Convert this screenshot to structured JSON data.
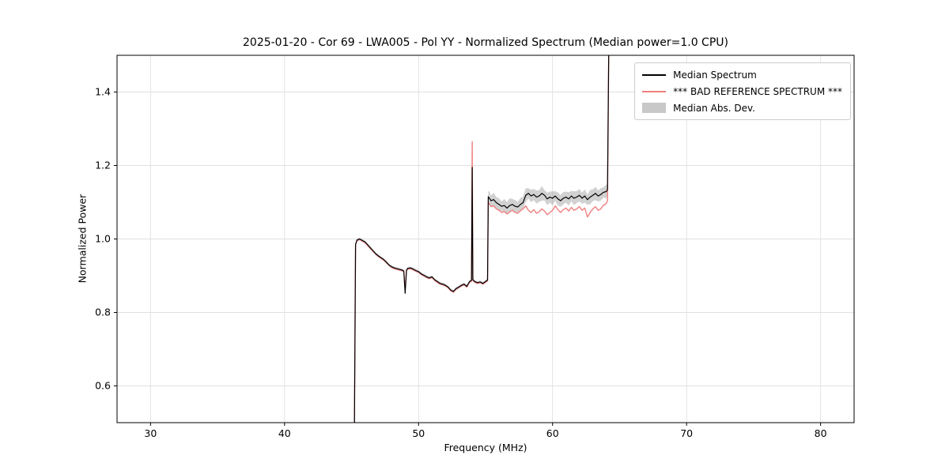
{
  "chart_data": {
    "type": "line",
    "title": "2025-01-20 - Cor 69 - LWA005 - Pol YY - Normalized Spectrum (Median power=1.0 CPU)",
    "xlabel": "Frequency (MHz)",
    "ylabel": "Normalized Power",
    "xlim": [
      27.5,
      82.5
    ],
    "ylim": [
      0.5,
      1.5
    ],
    "grid": true,
    "grid_color": "#e0e0e0",
    "xticks": [
      30,
      40,
      50,
      60,
      70,
      80
    ],
    "xtick_labels": [
      "30",
      "40",
      "50",
      "60",
      "70",
      "80"
    ],
    "yticks": [
      0.6,
      0.8,
      1.0,
      1.2,
      1.4
    ],
    "ytick_labels": [
      "0.6",
      "0.8",
      "1.0",
      "1.2",
      "1.4"
    ],
    "legend": {
      "position": "upper right",
      "entries": [
        {
          "label": "Median Spectrum",
          "color": "#000000",
          "type": "line"
        },
        {
          "label": "*** BAD REFERENCE SPECTRUM ***",
          "color": "#f08080",
          "type": "line"
        },
        {
          "label": "Median Abs. Dev.",
          "color": "#c8c8c8",
          "type": "patch"
        }
      ]
    },
    "x": [
      45.2,
      45.3,
      45.4,
      45.6,
      45.8,
      46.0,
      46.2,
      46.4,
      46.6,
      46.8,
      47.0,
      47.2,
      47.4,
      47.6,
      47.8,
      48.0,
      48.2,
      48.4,
      48.6,
      48.8,
      48.9,
      49.0,
      49.1,
      49.2,
      49.4,
      49.6,
      49.8,
      50.0,
      50.2,
      50.4,
      50.6,
      50.8,
      51.0,
      51.2,
      51.4,
      51.6,
      51.8,
      52.0,
      52.2,
      52.4,
      52.6,
      52.8,
      53.0,
      53.2,
      53.4,
      53.6,
      53.8,
      53.95,
      54.0,
      54.05,
      54.2,
      54.4,
      54.6,
      54.8,
      55.0,
      55.1,
      55.15,
      55.2,
      55.3,
      55.4,
      55.6,
      55.8,
      56.0,
      56.2,
      56.4,
      56.6,
      56.8,
      57.0,
      57.2,
      57.4,
      57.6,
      57.8,
      58.0,
      58.2,
      58.4,
      58.6,
      58.8,
      59.0,
      59.2,
      59.4,
      59.6,
      59.8,
      60.0,
      60.2,
      60.4,
      60.6,
      60.8,
      61.0,
      61.2,
      61.4,
      61.6,
      61.8,
      62.0,
      62.2,
      62.4,
      62.6,
      62.8,
      63.0,
      63.2,
      63.4,
      63.6,
      63.8,
      64.0,
      64.1,
      64.2
    ],
    "series": [
      {
        "name": "Median Spectrum",
        "color": "#000000",
        "values": [
          0.4,
          0.985,
          0.997,
          1.0,
          0.996,
          0.992,
          0.984,
          0.976,
          0.968,
          0.96,
          0.954,
          0.949,
          0.944,
          0.937,
          0.929,
          0.924,
          0.921,
          0.919,
          0.917,
          0.915,
          0.913,
          0.852,
          0.916,
          0.92,
          0.921,
          0.918,
          0.914,
          0.911,
          0.905,
          0.901,
          0.897,
          0.894,
          0.897,
          0.889,
          0.884,
          0.879,
          0.877,
          0.874,
          0.869,
          0.861,
          0.857,
          0.865,
          0.869,
          0.874,
          0.877,
          0.871,
          0.884,
          0.887,
          1.195,
          0.889,
          0.884,
          0.881,
          0.883,
          0.879,
          0.884,
          0.887,
          0.888,
          1.115,
          1.11,
          1.104,
          1.107,
          1.099,
          1.094,
          1.089,
          1.091,
          1.084,
          1.091,
          1.094,
          1.089,
          1.087,
          1.094,
          1.099,
          1.119,
          1.124,
          1.117,
          1.121,
          1.114,
          1.117,
          1.124,
          1.119,
          1.109,
          1.114,
          1.111,
          1.117,
          1.109,
          1.104,
          1.111,
          1.114,
          1.109,
          1.117,
          1.111,
          1.114,
          1.119,
          1.111,
          1.117,
          1.107,
          1.114,
          1.119,
          1.124,
          1.117,
          1.121,
          1.127,
          1.129,
          1.134,
          1.55
        ]
      },
      {
        "name": "*** BAD REFERENCE SPECTRUM ***",
        "color": "#f08080",
        "values": [
          0.4,
          0.983,
          0.995,
          0.999,
          0.994,
          0.99,
          0.982,
          0.974,
          0.966,
          0.959,
          0.952,
          0.947,
          0.942,
          0.935,
          0.928,
          0.922,
          0.919,
          0.917,
          0.915,
          0.913,
          0.911,
          0.862,
          0.914,
          0.918,
          0.919,
          0.916,
          0.912,
          0.909,
          0.903,
          0.899,
          0.895,
          0.892,
          0.895,
          0.887,
          0.882,
          0.877,
          0.875,
          0.872,
          0.867,
          0.859,
          0.855,
          0.863,
          0.867,
          0.872,
          0.875,
          0.869,
          0.882,
          0.885,
          1.265,
          0.887,
          0.882,
          0.879,
          0.881,
          0.877,
          0.882,
          0.885,
          0.886,
          1.1,
          1.094,
          1.088,
          1.09,
          1.082,
          1.078,
          1.072,
          1.075,
          1.068,
          1.074,
          1.078,
          1.072,
          1.07,
          1.077,
          1.082,
          1.09,
          1.078,
          1.072,
          1.08,
          1.07,
          1.074,
          1.082,
          1.076,
          1.066,
          1.072,
          1.078,
          1.09,
          1.08,
          1.072,
          1.08,
          1.084,
          1.076,
          1.086,
          1.078,
          1.082,
          1.088,
          1.078,
          1.084,
          1.06,
          1.072,
          1.082,
          1.088,
          1.078,
          1.082,
          1.092,
          1.096,
          1.105,
          1.55
        ]
      }
    ],
    "band": {
      "name": "Median Abs. Dev.",
      "color": "#999999",
      "alpha": 0.45,
      "half_width": [
        0.004,
        0.004,
        0.004,
        0.004,
        0.004,
        0.004,
        0.004,
        0.004,
        0.004,
        0.004,
        0.004,
        0.004,
        0.004,
        0.004,
        0.004,
        0.004,
        0.004,
        0.004,
        0.004,
        0.004,
        0.004,
        0.004,
        0.004,
        0.004,
        0.004,
        0.004,
        0.004,
        0.004,
        0.004,
        0.004,
        0.004,
        0.004,
        0.004,
        0.004,
        0.004,
        0.004,
        0.004,
        0.004,
        0.004,
        0.004,
        0.004,
        0.004,
        0.004,
        0.004,
        0.004,
        0.004,
        0.004,
        0.004,
        0.004,
        0.004,
        0.004,
        0.004,
        0.004,
        0.004,
        0.004,
        0.004,
        0.004,
        0.016,
        0.018,
        0.014,
        0.019,
        0.015,
        0.017,
        0.013,
        0.018,
        0.016,
        0.02,
        0.015,
        0.017,
        0.014,
        0.018,
        0.016,
        0.019,
        0.014,
        0.017,
        0.015,
        0.018,
        0.016,
        0.02,
        0.014,
        0.017,
        0.015,
        0.019,
        0.013,
        0.018,
        0.016,
        0.017,
        0.015,
        0.018,
        0.014,
        0.019,
        0.016,
        0.017,
        0.015,
        0.018,
        0.014,
        0.02,
        0.016,
        0.018,
        0.015,
        0.017,
        0.014,
        0.019,
        0.016,
        0.018
      ]
    }
  }
}
